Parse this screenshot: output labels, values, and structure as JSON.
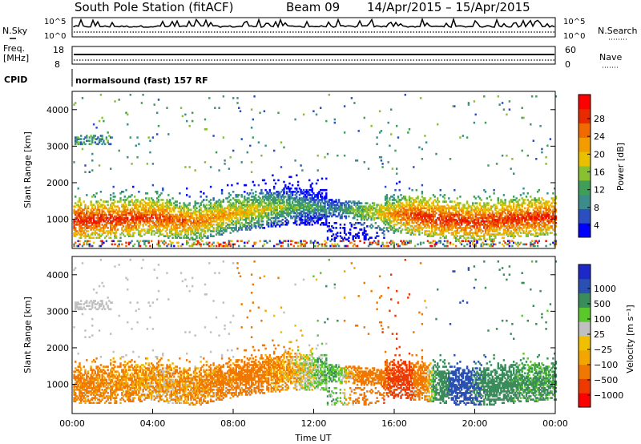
{
  "header": {
    "title": "South Pole Station (fitACF)",
    "beam": "Beam 09",
    "dates": "14/Apr/2015 – 15/Apr/2015"
  },
  "top_panels": {
    "nsky_label": "N.Sky",
    "nsky_ticks": [
      "10^5",
      "10^0"
    ],
    "nsearch_label": "N.Search",
    "nsearch_ticks": [
      "10^5",
      "10^0"
    ],
    "freq_label": "Freq.",
    "freq_unit": "[MHz]",
    "freq_ticks": [
      "18",
      "8"
    ],
    "nave_label": "Nave",
    "nave_ticks": [
      "60",
      "0"
    ],
    "cpid_label": "CPID",
    "cpid_value": "normalsound (fast) 157 RF"
  },
  "colorbars": {
    "power_label": "Power [dB]",
    "power_ticks": [
      "28",
      "24",
      "20",
      "16",
      "12",
      "8",
      "4"
    ],
    "velocity_label": "Velocity [m s⁻¹]",
    "velocity_ticks": [
      "1000",
      "500",
      "100",
      "25",
      "−25",
      "−100",
      "−500",
      "−1000"
    ]
  },
  "chart_data": [
    {
      "type": "heatmap",
      "title": "",
      "xlabel": "",
      "ylabel": "Slant Range [km]",
      "xlim": [
        "00:00",
        "00:00"
      ],
      "ylim": [
        200,
        4500
      ],
      "x_ticks": [
        "00:00",
        "04:00",
        "08:00",
        "12:00",
        "16:00",
        "20:00",
        "00:00"
      ],
      "y_ticks": [
        1000,
        2000,
        3000,
        4000
      ],
      "colorbar_label": "Power [dB]",
      "colorbar_range": [
        0,
        30
      ],
      "echo_band_center_km": [
        {
          "hour": 0.5,
          "range_km": 950
        },
        {
          "hour": 2,
          "range_km": 980
        },
        {
          "hour": 4,
          "range_km": 1050
        },
        {
          "hour": 6,
          "range_km": 900
        },
        {
          "hour": 8,
          "range_km": 1150
        },
        {
          "hour": 10,
          "range_km": 1300
        },
        {
          "hour": 11.5,
          "range_km": 1350
        },
        {
          "hour": 16.5,
          "range_km": 1100
        },
        {
          "hour": 18,
          "range_km": 1000
        },
        {
          "hour": 20,
          "range_km": 900
        },
        {
          "hour": 22,
          "range_km": 1000
        },
        {
          "hour": 23.5,
          "range_km": 1050
        }
      ],
      "typical_power_db": [
        {
          "hour": 1,
          "power": 27
        },
        {
          "hour": 5,
          "power": 24
        },
        {
          "hour": 9,
          "power": 18
        },
        {
          "hour": 13,
          "power": 8
        },
        {
          "hour": 17,
          "power": 26
        },
        {
          "hour": 21,
          "power": 26
        }
      ]
    },
    {
      "type": "heatmap",
      "title": "",
      "xlabel": "Time UT",
      "ylabel": "Slant Range [km]",
      "xlim": [
        "00:00",
        "00:00"
      ],
      "ylim": [
        200,
        4500
      ],
      "x_ticks": [
        "00:00",
        "04:00",
        "08:00",
        "12:00",
        "16:00",
        "20:00",
        "00:00"
      ],
      "y_ticks": [
        1000,
        2000,
        3000,
        4000
      ],
      "colorbar_label": "Velocity [m s⁻¹]",
      "colorbar_range": [
        -1000,
        1000
      ],
      "typical_velocity_ms": [
        {
          "hour": 1,
          "velocity": -150
        },
        {
          "hour": 5,
          "velocity": -80
        },
        {
          "hour": 9,
          "velocity": -200
        },
        {
          "hour": 13,
          "velocity": 100
        },
        {
          "hour": 16.5,
          "velocity": -700
        },
        {
          "hour": 19,
          "velocity": 700
        },
        {
          "hour": 22,
          "velocity": 150
        }
      ]
    }
  ],
  "colors": {
    "power_scale": [
      "#0000ff",
      "#2b4fc0",
      "#3c8c8c",
      "#3f9f58",
      "#88c030",
      "#e8c000",
      "#f39c00",
      "#f06a00",
      "#e82a00",
      "#ff0000"
    ],
    "velocity_scale": [
      "#ff0000",
      "#ee3a00",
      "#f07800",
      "#f3a600",
      "#f0c000",
      "#c0c0c0",
      "#5ac82a",
      "#3a8c5a",
      "#2a50b4",
      "#1e28c8"
    ]
  }
}
